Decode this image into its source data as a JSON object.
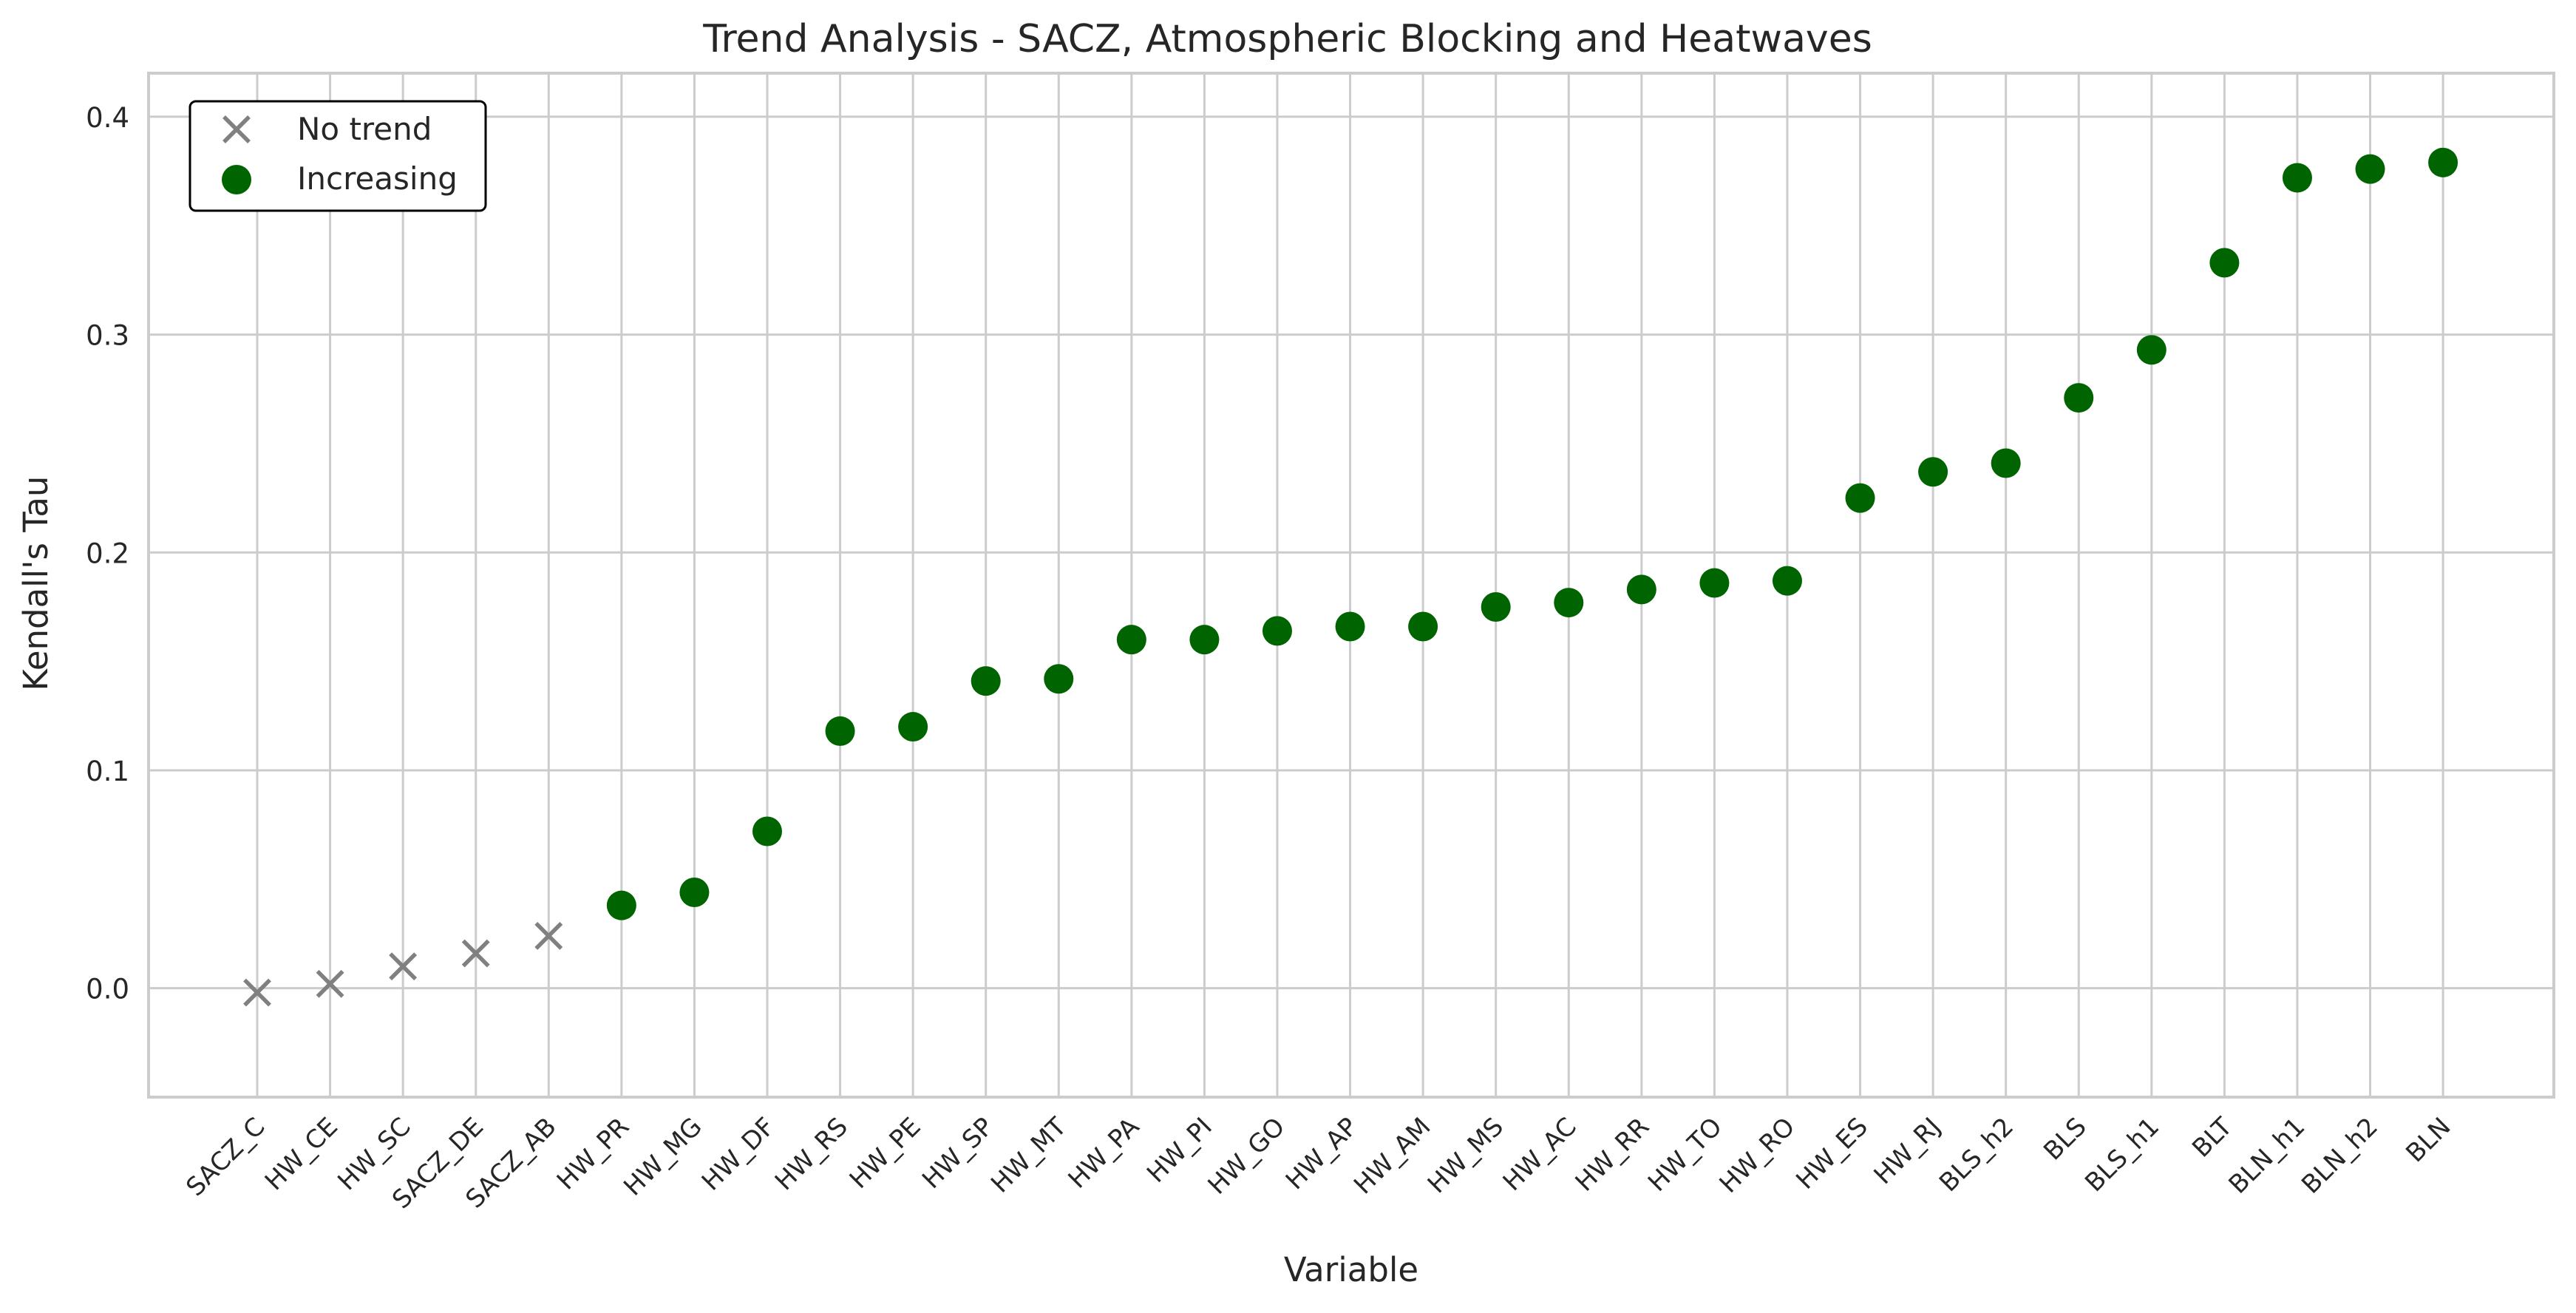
{
  "chart_data": {
    "type": "scatter",
    "title": "Trend Analysis - SACZ, Atmospheric Blocking and Heatwaves",
    "xlabel": "Variable",
    "ylabel": "Kendall's Tau",
    "ylim": [
      -0.05,
      0.42
    ],
    "yticks": [
      "0.0",
      "0.1",
      "0.2",
      "0.3",
      "0.4"
    ],
    "ytick_values": [
      0.0,
      0.1,
      0.2,
      0.3,
      0.4
    ],
    "grid": true,
    "legend_position": "top-left",
    "categories": [
      "SACZ_C",
      "HW_CE",
      "HW_SC",
      "SACZ_DE",
      "SACZ_AB",
      "HW_PR",
      "HW_MG",
      "HW_DF",
      "HW_RS",
      "HW_PE",
      "HW_SP",
      "HW_MT",
      "HW_PA",
      "HW_PI",
      "HW_GO",
      "HW_AP",
      "HW_AM",
      "HW_MS",
      "HW_AC",
      "HW_RR",
      "HW_TO",
      "HW_RO",
      "HW_ES",
      "HW_RJ",
      "BLS_h2",
      "BLS",
      "BLS_h1",
      "BLT",
      "BLN_h1",
      "BLN_h2",
      "BLN"
    ],
    "values": [
      -0.002,
      0.002,
      0.01,
      0.016,
      0.024,
      0.038,
      0.044,
      0.072,
      0.118,
      0.12,
      0.141,
      0.142,
      0.16,
      0.16,
      0.164,
      0.166,
      0.166,
      0.175,
      0.177,
      0.183,
      0.186,
      0.187,
      0.225,
      0.237,
      0.241,
      0.271,
      0.293,
      0.333,
      0.372,
      0.376,
      0.379
    ],
    "trend": [
      "No trend",
      "No trend",
      "No trend",
      "No trend",
      "No trend",
      "Increasing",
      "Increasing",
      "Increasing",
      "Increasing",
      "Increasing",
      "Increasing",
      "Increasing",
      "Increasing",
      "Increasing",
      "Increasing",
      "Increasing",
      "Increasing",
      "Increasing",
      "Increasing",
      "Increasing",
      "Increasing",
      "Increasing",
      "Increasing",
      "Increasing",
      "Increasing",
      "Increasing",
      "Increasing",
      "Increasing",
      "Increasing",
      "Increasing",
      "Increasing"
    ],
    "series": [
      {
        "name": "No trend",
        "marker": "x",
        "color": "#808080"
      },
      {
        "name": "Increasing",
        "marker": "circle",
        "color": "#006400"
      }
    ],
    "colors": {
      "grid": "#cccccc",
      "axes": "#cccccc",
      "text": "#262626",
      "legend_border": "#000000"
    }
  }
}
